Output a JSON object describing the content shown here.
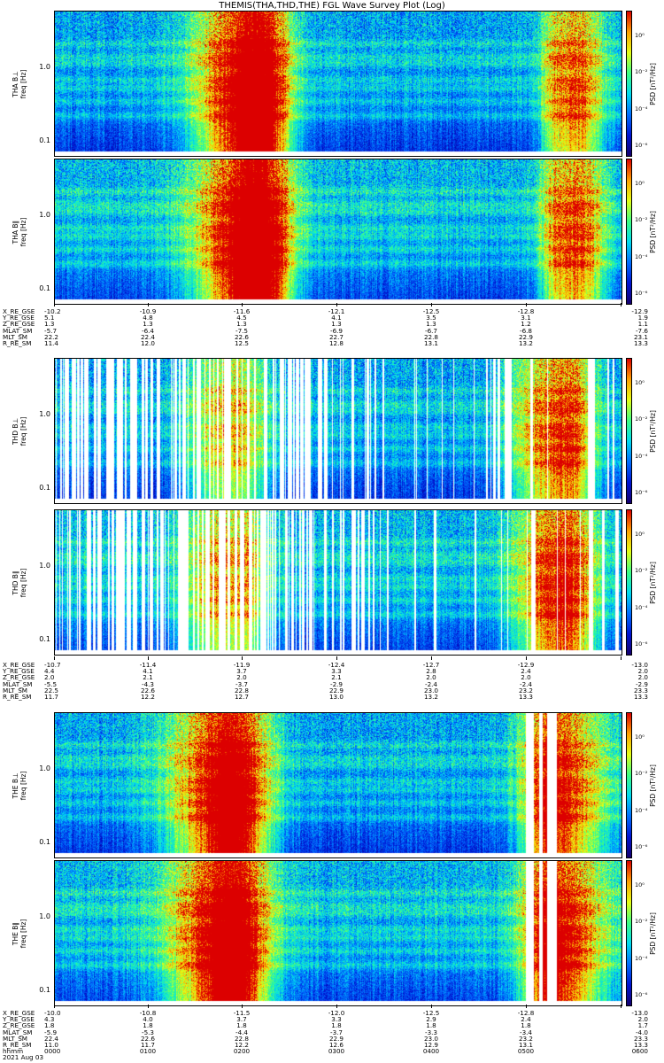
{
  "title": "THEMIS(THA,THD,THE) FGL Wave Survey Plot (Log)",
  "colors": {
    "white_gap": "#ffffff"
  },
  "chart_data": {
    "type": "heatmap",
    "colormap": "rainbow (dark blue → cyan → green → yellow → red)",
    "y_scale": "log",
    "ylim": [
      0.06,
      6.0
    ],
    "colorbar_scale": "log",
    "colorbar_ticks": [
      "10⁰",
      "10⁻²",
      "10⁻⁴",
      "10⁻⁶"
    ],
    "colorbar_label": "PSD [nT²/Hz]",
    "x_time_ticks": [
      "0000",
      "0100",
      "0200",
      "0300",
      "0400",
      "0500",
      "0600"
    ],
    "date": "2021 Aug 03",
    "panels": [
      {
        "ylabel": "THA B⊥",
        "ylabel_unit": "freq [Hz]",
        "yticks": [
          "1.0",
          "0.1"
        ]
      },
      {
        "ylabel": "THA B∥",
        "ylabel_unit": "freq [Hz]",
        "yticks": [
          "1.0",
          "0.1"
        ]
      },
      {
        "ylabel": "THD B⊥",
        "ylabel_unit": "freq [Hz]",
        "yticks": [
          "1.0",
          "0.1"
        ]
      },
      {
        "ylabel": "THD B∥",
        "ylabel_unit": "freq [Hz]",
        "yticks": [
          "1.0",
          "0.1"
        ]
      },
      {
        "ylabel": "THE B⊥",
        "ylabel_unit": "freq [Hz]",
        "yticks": [
          "1.0",
          "0.1"
        ]
      },
      {
        "ylabel": "THE B∥",
        "ylabel_unit": "freq [Hz]",
        "yticks": [
          "1.0",
          "0.1"
        ]
      }
    ],
    "orbit_tables": [
      {
        "probe": "THA",
        "names": [
          "X_RE_GSE",
          "Y_RE_GSE",
          "Z_RE_GSE",
          "MLAT_SM",
          "MLT_SM",
          "R_RE_SM"
        ],
        "columns": [
          [
            "-10.2",
            "5.1",
            "1.3",
            "-5.7",
            "22.2",
            "11.4"
          ],
          [
            "-10.9",
            "4.8",
            "1.3",
            "-6.4",
            "22.4",
            "12.0"
          ],
          [
            "-11.6",
            "4.5",
            "1.3",
            "-7.5",
            "22.6",
            "12.5"
          ],
          [
            "-12.1",
            "4.1",
            "1.3",
            "-6.9",
            "22.7",
            "12.8"
          ],
          [
            "-12.5",
            "3.5",
            "1.3",
            "-6.7",
            "22.8",
            "13.1"
          ],
          [
            "-12.8",
            "3.1",
            "1.2",
            "-6.8",
            "22.9",
            "13.2"
          ],
          [
            "-12.9",
            "1.9",
            "1.1",
            "-7.6",
            "23.1",
            "13.3"
          ]
        ]
      },
      {
        "probe": "THD",
        "names": [
          "X_RE_GSE",
          "Y_RE_GSE",
          "Z_RE_GSE",
          "MLAT_SM",
          "MLT_SM",
          "R_RE_SM"
        ],
        "columns": [
          [
            "-10.7",
            "4.4",
            "2.0",
            "-5.5",
            "22.5",
            "11.7"
          ],
          [
            "-11.4",
            "4.1",
            "2.1",
            "-4.3",
            "22.6",
            "12.2"
          ],
          [
            "-11.9",
            "3.7",
            "2.0",
            "-3.7",
            "22.8",
            "12.7"
          ],
          [
            "-12.4",
            "3.3",
            "2.1",
            "-2.9",
            "22.9",
            "13.0"
          ],
          [
            "-12.7",
            "2.8",
            "2.0",
            "-2.4",
            "23.0",
            "13.2"
          ],
          [
            "-12.9",
            "2.4",
            "2.0",
            "-2.4",
            "23.2",
            "13.3"
          ],
          [
            "-13.0",
            "2.0",
            "2.0",
            "-2.9",
            "23.3",
            "13.3"
          ]
        ]
      },
      {
        "probe": "THE",
        "names": [
          "X_RE_GSE",
          "Y_RE_GSE",
          "Z_RE_GSE",
          "MLAT_SM",
          "MLT_SM",
          "R_RE_SM",
          "hhmm",
          "2021 Aug 03"
        ],
        "columns": [
          [
            "-10.0",
            "4.3",
            "1.8",
            "-5.9",
            "22.4",
            "11.0",
            "0000"
          ],
          [
            "-10.8",
            "4.0",
            "1.8",
            "-5.3",
            "22.6",
            "11.7",
            "0100"
          ],
          [
            "-11.5",
            "3.7",
            "1.8",
            "-4.4",
            "22.8",
            "12.2",
            "0200"
          ],
          [
            "-12.0",
            "3.3",
            "1.8",
            "-3.7",
            "22.9",
            "12.6",
            "0300"
          ],
          [
            "-12.5",
            "2.9",
            "1.8",
            "-3.3",
            "23.0",
            "12.9",
            "0400"
          ],
          [
            "-12.8",
            "2.4",
            "1.8",
            "-3.4",
            "23.2",
            "13.1",
            "0500"
          ],
          [
            "-13.0",
            "2.0",
            "1.7",
            "-4.0",
            "23.3",
            "13.3",
            "0600"
          ]
        ]
      }
    ]
  }
}
